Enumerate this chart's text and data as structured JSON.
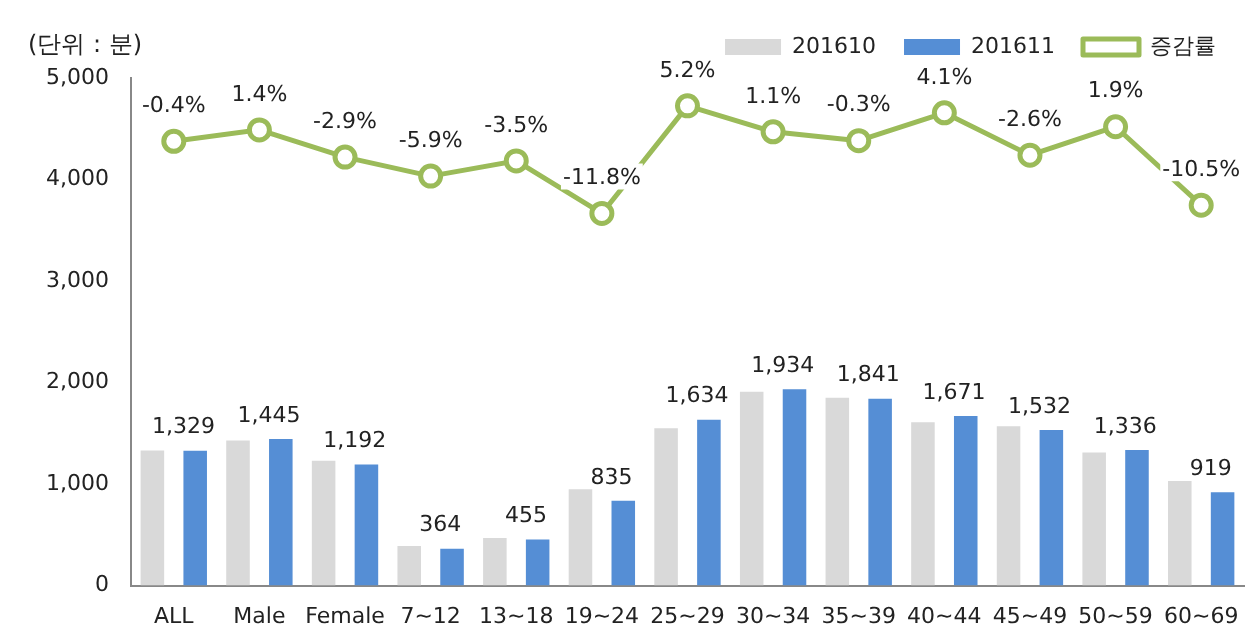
{
  "chart_data": {
    "type": "bar",
    "ylabel": "(단위 : 분)",
    "categories": [
      "ALL",
      "Male",
      "Female",
      "7~12",
      "13~18",
      "19~24",
      "25~29",
      "30~34",
      "35~39",
      "40~44",
      "45~49",
      "50~59",
      "60~69"
    ],
    "series": [
      {
        "name": "201610",
        "color": "#d9d9d9",
        "values": [
          1330,
          1430,
          1230,
          390,
          470,
          950,
          1550,
          1910,
          1850,
          1610,
          1570,
          1310,
          1030
        ]
      },
      {
        "name": "201611",
        "color": "#558ed5",
        "values": [
          1329,
          1445,
          1192,
          364,
          455,
          835,
          1634,
          1934,
          1841,
          1671,
          1532,
          1336,
          919
        ],
        "value_labels": [
          "1,329",
          "1,445",
          "1,192",
          "364",
          "455",
          "835",
          "1,634",
          "1,934",
          "1,841",
          "1,671",
          "1,532",
          "1,336",
          "919"
        ]
      },
      {
        "name": "증감률",
        "type": "line",
        "axis": "y2",
        "color": "#9bbb59",
        "values": [
          -0.4,
          1.4,
          -2.9,
          -5.9,
          -3.5,
          -11.8,
          5.2,
          1.1,
          -0.3,
          4.1,
          -2.6,
          1.9,
          -10.5
        ],
        "value_labels": [
          "-0.4%",
          "1.4%",
          "-2.9%",
          "-5.9%",
          "-3.5%",
          "-11.8%",
          "5.2%",
          "1.1%",
          "-0.3%",
          "4.1%",
          "-2.6%",
          "1.9%",
          "-10.5%"
        ]
      }
    ],
    "ylim": [
      0,
      5000
    ],
    "yticks": [
      {
        "value": 0,
        "label": "0"
      },
      {
        "value": 1000,
        "label": "1,000"
      },
      {
        "value": 2000,
        "label": "2,000"
      },
      {
        "value": 3000,
        "label": "3,000"
      },
      {
        "value": 4000,
        "label": "4,000"
      },
      {
        "value": 5000,
        "label": "5,000"
      }
    ],
    "y2lim": [
      -70.6,
      9.6
    ],
    "tick_labels": true,
    "grid": false,
    "legend": "top right",
    "marker": "circle",
    "line_style": "solid"
  }
}
